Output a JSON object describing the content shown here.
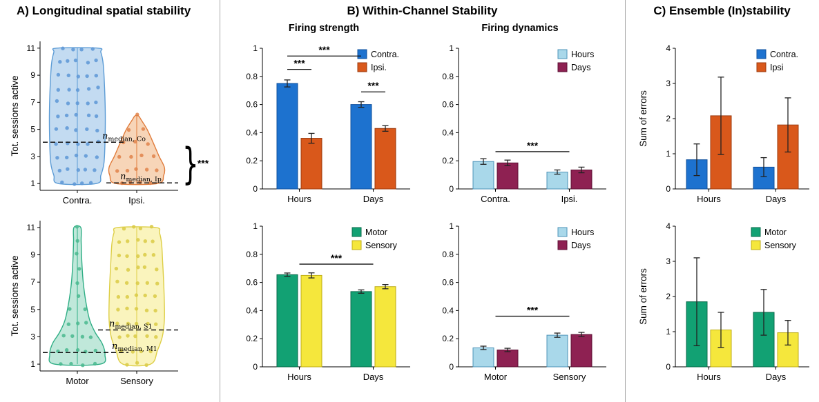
{
  "figure": {
    "panel_a_title": "A) Longitudinal spatial stability",
    "panel_b_title": "B) Within-Channel Stability",
    "panel_c_title": "C) Ensemble (In)stability",
    "subtitle_firing_strength": "Firing strength",
    "subtitle_firing_dynamics": "Firing dynamics",
    "median_var": "n",
    "significance_symbol": "***"
  },
  "colors": {
    "contra_blue": "#1d72cf",
    "ipsi_orange": "#d9581b",
    "hours_lightblue": "#a9d8ea",
    "days_maroon": "#8e2152",
    "motor_green": "#12a173",
    "sensory_yellow": "#f5e73c"
  },
  "chart_data": [
    {
      "id": "violin-top",
      "type": "violin",
      "ylabel": "Tot. sessions active",
      "ylim": [
        0.5,
        11.5
      ],
      "yticks": [
        1,
        3,
        5,
        7,
        9,
        11
      ],
      "categories": [
        "Contra.",
        "Ipsi."
      ],
      "violins": [
        {
          "name": "Contra.",
          "stroke": "#5b9bd5",
          "fill": "#bdd7f0",
          "dot": "#5d97d6",
          "seed": 7,
          "range": [
            1,
            11
          ],
          "profile": [
            [
              1,
              0.55
            ],
            [
              1.6,
              0.68
            ],
            [
              2.5,
              0.77
            ],
            [
              4,
              0.8
            ],
            [
              6,
              0.81
            ],
            [
              8,
              0.79
            ],
            [
              9.8,
              0.75
            ],
            [
              10.7,
              0.68
            ],
            [
              11,
              0.6
            ]
          ]
        },
        {
          "name": "Ipsi.",
          "stroke": "#e07b3a",
          "fill": "#f6d0b0",
          "dot": "#e0834a",
          "seed": 13,
          "range": [
            1,
            6
          ],
          "profile": [
            [
              1,
              0.6
            ],
            [
              1.6,
              0.78
            ],
            [
              2.2,
              0.8
            ],
            [
              3,
              0.65
            ],
            [
              4,
              0.48
            ],
            [
              5,
              0.3
            ],
            [
              5.7,
              0.13
            ],
            [
              6,
              0.05
            ]
          ]
        }
      ],
      "medians": [
        {
          "value": 4.05,
          "sub": "median, Co",
          "span": [
            0.02,
            0.62
          ],
          "label_frac": 0.45
        },
        {
          "value": 1.05,
          "sub": "median, Ip",
          "span": [
            0.48,
            1.0
          ],
          "label_frac": 0.58
        }
      ],
      "brace_label": "***"
    },
    {
      "id": "violin-bottom",
      "type": "violin",
      "ylabel": "Tot. sessions active",
      "ylim": [
        0.5,
        11.5
      ],
      "yticks": [
        1,
        3,
        5,
        7,
        9,
        11
      ],
      "categories": [
        "Motor",
        "Sensory"
      ],
      "violins": [
        {
          "name": "Motor",
          "stroke": "#2fae85",
          "fill": "#b9e6d6",
          "dot": "#49b98e",
          "seed": 21,
          "range": [
            1,
            11
          ],
          "profile": [
            [
              1,
              0.66
            ],
            [
              1.7,
              0.8
            ],
            [
              2.5,
              0.72
            ],
            [
              3.3,
              0.52
            ],
            [
              4.2,
              0.36
            ],
            [
              5.5,
              0.25
            ],
            [
              7,
              0.17
            ],
            [
              8.5,
              0.13
            ],
            [
              10,
              0.11
            ],
            [
              11,
              0.1
            ]
          ]
        },
        {
          "name": "Sensory",
          "stroke": "#ddce45",
          "fill": "#faf3b6",
          "dot": "#d9ca45",
          "seed": 33,
          "range": [
            1,
            11
          ],
          "profile": [
            [
              1,
              0.4
            ],
            [
              2,
              0.6
            ],
            [
              3,
              0.74
            ],
            [
              4.2,
              0.8
            ],
            [
              5.5,
              0.8
            ],
            [
              7,
              0.78
            ],
            [
              8.5,
              0.75
            ],
            [
              9.8,
              0.72
            ],
            [
              10.6,
              0.66
            ],
            [
              11,
              0.55
            ]
          ]
        }
      ],
      "medians": [
        {
          "value": 3.5,
          "sub": "median, S1",
          "span": [
            0.42,
            1.0
          ],
          "label_frac": 0.5
        },
        {
          "value": 1.85,
          "sub": "median, M1",
          "span": [
            0.02,
            0.64
          ],
          "label_frac": 0.52
        }
      ]
    },
    {
      "id": "bar-firing-strength",
      "type": "bar",
      "categories": [
        "Hours",
        "Days"
      ],
      "series": [
        {
          "name": "Contra.",
          "color": "#1d72cf",
          "edge": "#10509e",
          "values": [
            0.75,
            0.6
          ],
          "errors": [
            0.025,
            0.02
          ]
        },
        {
          "name": "Ipsi.",
          "color": "#d9581b",
          "edge": "#9c3a0e",
          "values": [
            0.36,
            0.43
          ],
          "errors": [
            0.035,
            0.02
          ]
        }
      ],
      "ylim": [
        0,
        1
      ],
      "yticks": [
        0,
        0.2,
        0.4,
        0.6,
        0.8,
        1
      ],
      "sig": [
        {
          "x1": [
            0,
            0
          ],
          "x2": [
            0,
            1
          ],
          "y": 0.85,
          "label": "***"
        },
        {
          "x1": [
            0,
            0
          ],
          "x2": [
            1,
            0
          ],
          "y": 0.945,
          "label": "***"
        },
        {
          "x1": [
            1,
            0
          ],
          "x2": [
            1,
            1
          ],
          "y": 0.69,
          "label": "***"
        }
      ]
    },
    {
      "id": "bar-firing-dynamics-top",
      "type": "bar",
      "categories": [
        "Contra.",
        "Ipsi."
      ],
      "series": [
        {
          "name": "Hours",
          "color": "#a9d8ea",
          "edge": "#4d93b8",
          "values": [
            0.195,
            0.12
          ],
          "errors": [
            0.02,
            0.015
          ]
        },
        {
          "name": "Days",
          "color": "#8e2152",
          "edge": "#5c1134",
          "values": [
            0.185,
            0.135
          ],
          "errors": [
            0.02,
            0.02
          ]
        }
      ],
      "ylim": [
        0,
        1
      ],
      "yticks": [
        0,
        0.2,
        0.4,
        0.6,
        0.8,
        1
      ],
      "sig": [
        {
          "x1": [
            0,
            null
          ],
          "x2": [
            1,
            null
          ],
          "y": 0.265,
          "label": "***"
        }
      ]
    },
    {
      "id": "bar-motor-sensory-strength",
      "type": "bar",
      "categories": [
        "Hours",
        "Days"
      ],
      "series": [
        {
          "name": "Motor",
          "color": "#12a173",
          "edge": "#0a6a4b",
          "values": [
            0.655,
            0.535
          ],
          "errors": [
            0.012,
            0.012
          ]
        },
        {
          "name": "Sensory",
          "color": "#f5e73c",
          "edge": "#bfae17",
          "values": [
            0.65,
            0.57
          ],
          "errors": [
            0.018,
            0.015
          ]
        }
      ],
      "ylim": [
        0,
        1
      ],
      "yticks": [
        0,
        0.2,
        0.4,
        0.6,
        0.8,
        1
      ],
      "sig": [
        {
          "x1": [
            0,
            null
          ],
          "x2": [
            1,
            null
          ],
          "y": 0.73,
          "label": "***"
        }
      ]
    },
    {
      "id": "bar-firing-dynamics-bottom",
      "type": "bar",
      "categories": [
        "Motor",
        "Sensory"
      ],
      "series": [
        {
          "name": "Hours",
          "color": "#a9d8ea",
          "edge": "#4d93b8",
          "values": [
            0.135,
            0.225
          ],
          "errors": [
            0.012,
            0.015
          ]
        },
        {
          "name": "Days",
          "color": "#8e2152",
          "edge": "#5c1134",
          "values": [
            0.12,
            0.23
          ],
          "errors": [
            0.012,
            0.015
          ]
        }
      ],
      "ylim": [
        0,
        1
      ],
      "yticks": [
        0,
        0.2,
        0.4,
        0.6,
        0.8,
        1
      ],
      "sig": [
        {
          "x1": [
            0,
            null
          ],
          "x2": [
            1,
            null
          ],
          "y": 0.36,
          "label": "***"
        }
      ]
    },
    {
      "id": "ensemble-top",
      "type": "bar",
      "ylabel": "Sum of errors",
      "categories": [
        "Hours",
        "Days"
      ],
      "series": [
        {
          "name": "Contra.",
          "color": "#1d72cf",
          "edge": "#10509e",
          "values": [
            0.83,
            0.62
          ],
          "errors": [
            0.45,
            0.27
          ]
        },
        {
          "name": "Ipsi",
          "color": "#d9581b",
          "edge": "#9c3a0e",
          "values": [
            2.08,
            1.82
          ],
          "errors": [
            1.1,
            0.77
          ]
        }
      ],
      "ylim": [
        0,
        4
      ],
      "yticks": [
        0,
        1,
        2,
        3,
        4
      ]
    },
    {
      "id": "ensemble-bottom",
      "type": "bar",
      "ylabel": "Sum of errors",
      "categories": [
        "Hours",
        "Days"
      ],
      "series": [
        {
          "name": "Motor",
          "color": "#12a173",
          "edge": "#0a6a4b",
          "values": [
            1.85,
            1.55
          ],
          "errors": [
            1.25,
            0.65
          ]
        },
        {
          "name": "Sensory",
          "color": "#f5e73c",
          "edge": "#bfae17",
          "values": [
            1.05,
            0.97
          ],
          "errors": [
            0.5,
            0.35
          ]
        }
      ],
      "ylim": [
        0,
        4
      ],
      "yticks": [
        0,
        1,
        2,
        3,
        4
      ]
    }
  ]
}
